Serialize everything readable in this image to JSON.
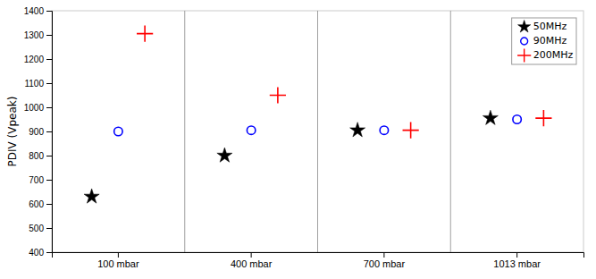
{
  "chart_data": {
    "type": "scatter",
    "categories": [
      "100 mbar",
      "400 mbar",
      "700 mbar",
      "1013 mbar"
    ],
    "series": [
      {
        "name": "50MHz",
        "color": "black",
        "marker": "star",
        "values": [
          630,
          800,
          905,
          955
        ]
      },
      {
        "name": "90MHz",
        "color": "blue",
        "marker": "circle",
        "values": [
          900,
          905,
          905,
          950
        ]
      },
      {
        "name": "200MHz",
        "color": "red",
        "marker": "plus",
        "values": [
          1305,
          1050,
          905,
          955
        ]
      }
    ],
    "ylabel": "PDIV (Vpeak)",
    "ylim": [
      400,
      1400
    ],
    "yticks": [
      400,
      500,
      600,
      700,
      800,
      900,
      1000,
      1100,
      1200,
      1300,
      1400
    ],
    "grid": false,
    "legend": "upper right"
  }
}
